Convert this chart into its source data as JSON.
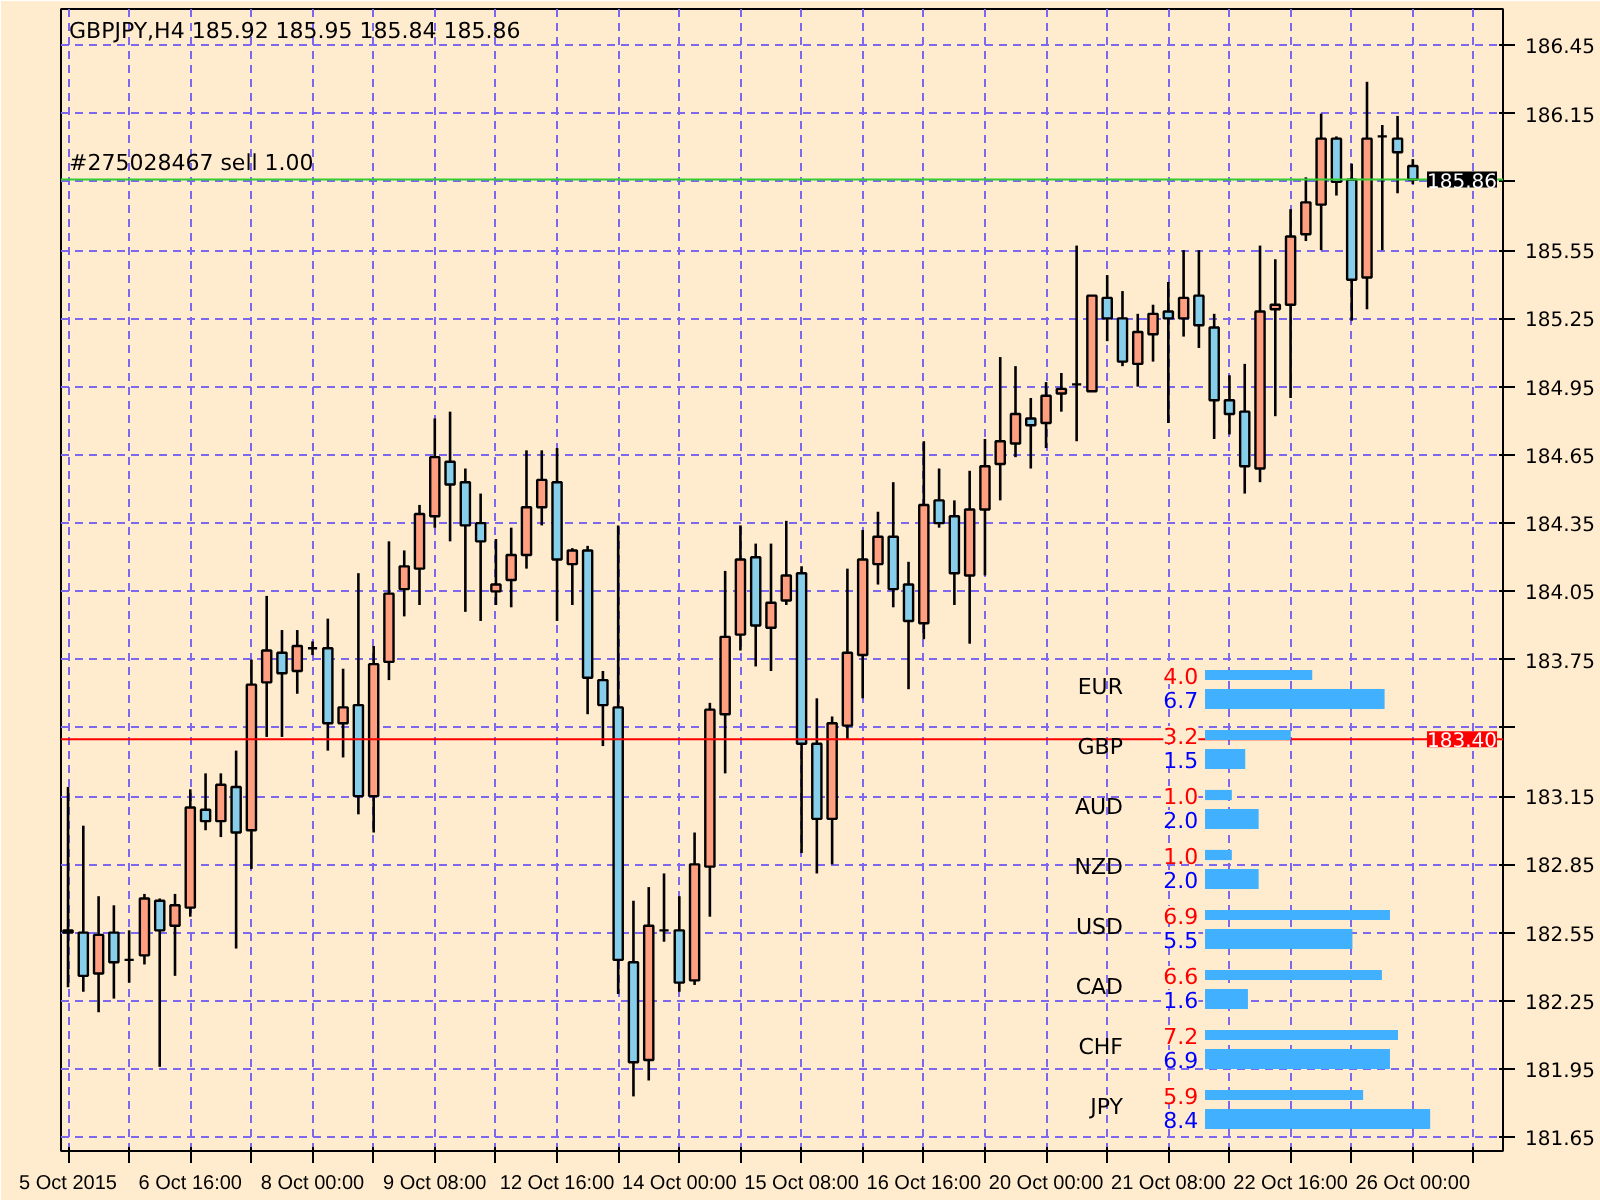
{
  "chart_data": [
    {
      "type": "candlestick",
      "title": "GBPJPY,H4  185.92 185.95 185.84 185.86",
      "categories": [
        "5 Oct 2015",
        null,
        null,
        null,
        null,
        null,
        null,
        null,
        "6 Oct 16:00",
        null,
        null,
        null,
        null,
        null,
        null,
        null,
        "8 Oct 00:00",
        null,
        null,
        null,
        null,
        null,
        null,
        null,
        "9 Oct 08:00",
        null,
        null,
        null,
        null,
        null,
        null,
        null,
        "12 Oct 16:00",
        null,
        null,
        null,
        null,
        null,
        null,
        null,
        "14 Oct 00:00",
        null,
        null,
        null,
        null,
        null,
        null,
        null,
        "15 Oct 08:00",
        null,
        null,
        null,
        null,
        null,
        null,
        null,
        "16 Oct 16:00",
        null,
        null,
        null,
        null,
        null,
        null,
        null,
        "20 Oct 00:00",
        null,
        null,
        null,
        null,
        null,
        null,
        null,
        "21 Oct 08:00",
        null,
        null,
        null,
        null,
        null,
        null,
        null,
        "22 Oct 16:00",
        null,
        null,
        null,
        null,
        null,
        null,
        null,
        "26 Oct 00:00"
      ],
      "ohlc": [
        [
          182.55,
          183.19,
          182.31,
          182.56
        ],
        [
          182.55,
          183.02,
          182.29,
          182.36
        ],
        [
          182.37,
          182.71,
          182.2,
          182.54
        ],
        [
          182.55,
          182.67,
          182.26,
          182.42
        ],
        [
          182.43,
          182.56,
          182.33,
          182.43
        ],
        [
          182.45,
          182.72,
          182.41,
          182.7
        ],
        [
          182.69,
          182.7,
          181.96,
          182.56
        ],
        [
          182.58,
          182.72,
          182.36,
          182.67
        ],
        [
          182.66,
          183.18,
          182.62,
          183.1
        ],
        [
          183.09,
          183.25,
          183.0,
          183.04
        ],
        [
          183.04,
          183.25,
          182.97,
          183.2
        ],
        [
          183.19,
          183.35,
          182.48,
          182.99
        ],
        [
          183.0,
          183.75,
          182.83,
          183.64
        ],
        [
          183.65,
          184.03,
          183.41,
          183.79
        ],
        [
          183.78,
          183.88,
          183.41,
          183.69
        ],
        [
          183.7,
          183.88,
          183.6,
          183.81
        ],
        [
          183.8,
          183.83,
          183.77,
          183.8
        ],
        [
          183.8,
          183.93,
          183.35,
          183.47
        ],
        [
          183.47,
          183.71,
          183.32,
          183.54
        ],
        [
          183.55,
          184.13,
          183.07,
          183.15
        ],
        [
          183.15,
          183.81,
          182.99,
          183.73
        ],
        [
          183.74,
          184.27,
          183.66,
          184.04
        ],
        [
          184.06,
          184.23,
          183.94,
          184.16
        ],
        [
          184.15,
          184.43,
          183.99,
          184.39
        ],
        [
          184.38,
          184.81,
          184.33,
          184.64
        ],
        [
          184.62,
          184.84,
          184.27,
          184.52
        ],
        [
          184.53,
          184.59,
          183.96,
          184.34
        ],
        [
          184.35,
          184.48,
          183.92,
          184.27
        ],
        [
          184.05,
          184.28,
          183.99,
          184.08
        ],
        [
          184.1,
          184.33,
          183.98,
          184.21
        ],
        [
          184.21,
          184.67,
          184.15,
          184.42
        ],
        [
          184.42,
          184.67,
          184.34,
          184.54
        ],
        [
          184.53,
          184.68,
          183.92,
          184.19
        ],
        [
          184.17,
          184.24,
          183.99,
          184.23
        ],
        [
          184.23,
          184.25,
          183.51,
          183.67
        ],
        [
          183.66,
          183.7,
          183.37,
          183.55
        ],
        [
          183.54,
          184.34,
          182.28,
          182.43
        ],
        [
          182.42,
          182.69,
          181.83,
          181.98
        ],
        [
          181.99,
          182.75,
          181.9,
          182.58
        ],
        [
          182.56,
          182.81,
          182.51,
          182.56
        ],
        [
          182.56,
          182.71,
          182.29,
          182.33
        ],
        [
          182.34,
          182.99,
          182.32,
          182.85
        ],
        [
          182.84,
          183.56,
          182.62,
          183.53
        ],
        [
          183.51,
          184.14,
          183.25,
          183.85
        ],
        [
          183.86,
          184.34,
          183.79,
          184.19
        ],
        [
          184.2,
          184.26,
          183.72,
          183.9
        ],
        [
          183.89,
          184.26,
          183.7,
          184.0
        ],
        [
          184.01,
          184.36,
          183.99,
          184.12
        ],
        [
          184.13,
          184.16,
          182.9,
          183.38
        ],
        [
          183.38,
          183.58,
          182.81,
          183.05
        ],
        [
          183.05,
          183.5,
          182.85,
          183.47
        ],
        [
          183.46,
          184.15,
          183.4,
          183.78
        ],
        [
          183.77,
          184.32,
          183.58,
          184.19
        ],
        [
          184.17,
          184.4,
          184.08,
          184.29
        ],
        [
          184.29,
          184.53,
          183.98,
          184.06
        ],
        [
          184.08,
          184.18,
          183.62,
          183.92
        ],
        [
          183.91,
          184.71,
          183.84,
          184.43
        ],
        [
          184.45,
          184.59,
          184.33,
          184.35
        ],
        [
          184.38,
          184.45,
          183.99,
          184.13
        ],
        [
          184.12,
          184.58,
          183.82,
          184.41
        ],
        [
          184.41,
          184.72,
          184.12,
          184.6
        ],
        [
          184.61,
          185.08,
          184.45,
          184.71
        ],
        [
          184.7,
          185.04,
          184.64,
          184.83
        ],
        [
          184.81,
          184.9,
          184.59,
          184.78
        ],
        [
          184.79,
          184.97,
          184.68,
          184.91
        ],
        [
          184.92,
          185.01,
          184.84,
          184.94
        ],
        [
          184.96,
          185.57,
          184.71,
          184.96
        ],
        [
          184.93,
          185.35,
          184.93,
          185.35
        ],
        [
          185.34,
          185.44,
          185.15,
          185.25
        ],
        [
          185.25,
          185.37,
          185.04,
          185.06
        ],
        [
          185.05,
          185.27,
          184.95,
          185.19
        ],
        [
          185.18,
          185.31,
          185.06,
          185.27
        ],
        [
          185.28,
          185.41,
          184.79,
          185.25
        ],
        [
          185.25,
          185.55,
          185.17,
          185.34
        ],
        [
          185.35,
          185.55,
          185.12,
          185.22
        ],
        [
          185.21,
          185.27,
          184.72,
          184.89
        ],
        [
          184.89,
          185.0,
          184.74,
          184.83
        ],
        [
          184.84,
          185.05,
          184.48,
          184.6
        ],
        [
          184.59,
          185.57,
          184.53,
          185.28
        ],
        [
          185.29,
          185.51,
          184.82,
          185.31
        ],
        [
          185.31,
          185.73,
          184.9,
          185.61
        ],
        [
          185.62,
          185.87,
          185.59,
          185.76
        ],
        [
          185.75,
          186.15,
          185.55,
          186.04
        ],
        [
          186.04,
          186.05,
          185.79,
          185.85
        ],
        [
          185.86,
          185.93,
          185.24,
          185.42
        ],
        [
          185.43,
          186.29,
          185.29,
          186.04
        ],
        [
          186.05,
          186.1,
          185.55,
          186.05
        ],
        [
          186.04,
          186.14,
          185.8,
          185.98
        ],
        [
          185.92,
          185.95,
          185.84,
          185.86
        ]
      ],
      "ylim": [
        181.59,
        186.61
      ],
      "yticks": [
        181.65,
        181.95,
        182.25,
        182.55,
        182.85,
        183.15,
        {
          "value": 183.45,
          "label": null
        },
        183.75,
        184.05,
        184.35,
        184.65,
        184.95,
        185.25,
        185.55,
        {
          "value": 185.85,
          "label": null
        },
        186.15,
        186.45
      ],
      "grid": true,
      "ref_lines": [
        {
          "axis": "y",
          "value": 185.86,
          "label": "#275028467 sell 1.00",
          "color": "#32cd32"
        },
        {
          "axis": "y",
          "value": 183.4,
          "color": "#ff0000"
        }
      ],
      "annotations": [
        {
          "text": "185.86",
          "y": 185.86
        },
        {
          "text": "183.40",
          "y": 183.4
        }
      ]
    },
    {
      "type": "bar",
      "orientation": "horizontal",
      "categories": [
        "EUR",
        "GBP",
        "AUD",
        "NZD",
        "USD",
        "CAD",
        "CHF",
        "JPY"
      ],
      "series": [
        {
          "color": "#40b0ff",
          "values": [
            4.0,
            3.2,
            1.0,
            1.0,
            6.9,
            6.6,
            7.2,
            5.9
          ],
          "value_labels": [
            "4.0",
            "3.2",
            "1.0",
            "1.0",
            "6.9",
            "6.6",
            "7.2",
            "5.9"
          ]
        },
        {
          "color": "#40b0ff",
          "values": [
            6.7,
            1.5,
            2.0,
            2.0,
            5.5,
            1.6,
            6.9,
            8.4
          ],
          "value_labels": [
            "6.7",
            "1.5",
            "2.0",
            "2.0",
            "5.5",
            "1.6",
            "6.9",
            "8.4"
          ]
        }
      ],
      "tick_labels": "y"
    }
  ]
}
